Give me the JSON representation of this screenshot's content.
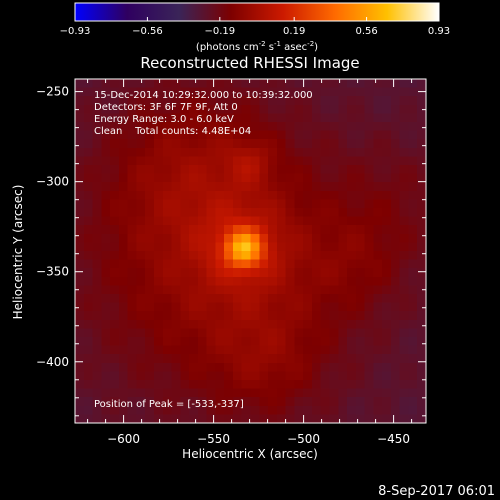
{
  "colorbar": {
    "ticks": [
      "-0.93",
      "-0.56",
      "-0.19",
      "0.19",
      "0.56",
      "0.93"
    ],
    "tick_values": [
      -0.93,
      -0.56,
      -0.19,
      0.19,
      0.56,
      0.93
    ],
    "range": [
      -0.93,
      0.93
    ],
    "unit_prefix": "(photons cm",
    "unit_exp1": "-2",
    "unit_mid": " s",
    "unit_exp2": "-1",
    "unit_mid2": " asec",
    "unit_exp3": "-2",
    "unit_suffix": ")"
  },
  "chart_data": {
    "type": "heatmap",
    "title": "Reconstructed RHESSI Image",
    "xlabel": "Heliocentric X (arcsec)",
    "ylabel": "Heliocentric Y (arcsec)",
    "xlim": [
      -627,
      -432
    ],
    "ylim": [
      -434,
      -243
    ],
    "x_ticks": [
      -600,
      -550,
      -500,
      -450
    ],
    "x_tick_labels": [
      "−600",
      "−550",
      "−500",
      "−450"
    ],
    "y_ticks": [
      -250,
      -300,
      -350,
      -400
    ],
    "y_tick_labels": [
      "−250",
      "−300",
      "−350",
      "−400"
    ],
    "grid": false,
    "colormap": [
      "#0000ff",
      "#2f0060",
      "#3a2458",
      "#7d0000",
      "#cc1a00",
      "#ff6a00",
      "#ffc000",
      "#ffffff"
    ],
    "peak": {
      "x": -533,
      "y": -337,
      "value": 0.93
    },
    "sources": [
      {
        "x": -533,
        "y": -337,
        "sigma": 7,
        "amp": 0.55
      },
      {
        "x": -533,
        "y": -337,
        "sigma": 17,
        "amp": 0.16
      },
      {
        "x": -530,
        "y": -289,
        "sigma": 9,
        "amp": 0.12
      },
      {
        "x": -565,
        "y": -290,
        "sigma": 32,
        "amp": 0.12
      },
      {
        "x": -545,
        "y": -345,
        "sigma": 55,
        "amp": 0.24
      },
      {
        "x": -520,
        "y": -400,
        "sigma": 22,
        "amp": 0.1
      },
      {
        "x": -470,
        "y": -345,
        "sigma": 20,
        "amp": 0.08
      },
      {
        "x": -445,
        "y": -310,
        "sigma": 25,
        "amp": 0.07
      }
    ],
    "background": -0.29,
    "annotations": [
      "15-Dec-2014 10:29:32.000 to 10:39:32.000",
      "Detectors: 3F 6F 7F 9F, Att 0",
      "Energy Range: 3.0 - 6.0 keV",
      "Clean    Total counts: 4.48E+04"
    ],
    "peak_label": "Position of Peak = [-533,-337]"
  },
  "footer": {
    "date": "8-Sep-2017 06:01"
  }
}
